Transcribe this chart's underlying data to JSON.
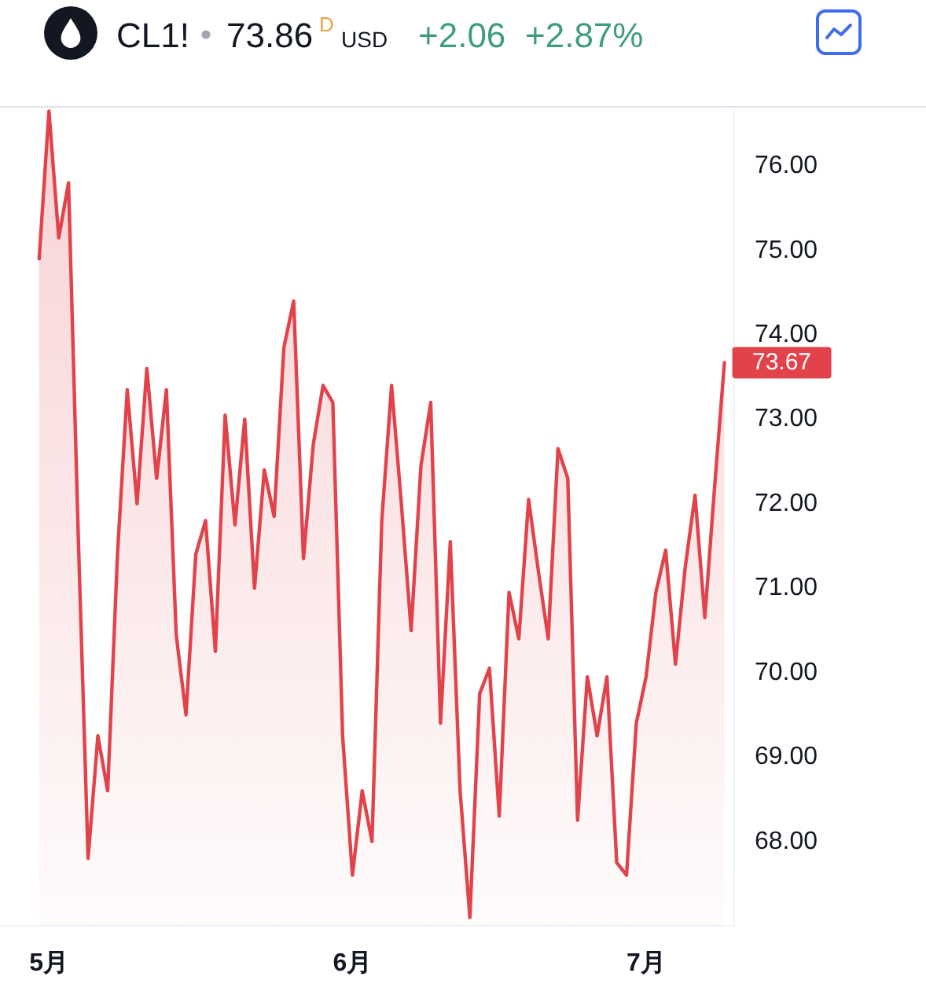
{
  "chart_data": {
    "type": "area",
    "title": "CL1!",
    "annotations": [
      "73.86",
      "D",
      "USD",
      "+2.06",
      "+2.87%",
      {
        "text": "73.67",
        "x": "--07-09",
        "y": 73.67
      }
    ],
    "x": [
      "--04-30",
      "--05-01",
      "--05-02",
      "--05-03",
      "--05-04",
      "--05-05",
      "--05-06",
      "--05-07",
      "--05-08",
      "--05-09",
      "--05-10",
      "--05-11",
      "--05-12",
      "--05-13",
      "--05-14",
      "--05-15",
      "--05-16",
      "--05-17",
      "--05-18",
      "--05-19",
      "--05-20",
      "--05-21",
      "--05-22",
      "--05-23",
      "--05-24",
      "--05-25",
      "--05-26",
      "--05-27",
      "--05-28",
      "--05-29",
      "--05-30",
      "--05-31",
      "--06-01",
      "--06-02",
      "--06-03",
      "--06-04",
      "--06-05",
      "--06-06",
      "--06-07",
      "--06-08",
      "--06-09",
      "--06-10",
      "--06-11",
      "--06-12",
      "--06-13",
      "--06-14",
      "--06-15",
      "--06-16",
      "--06-17",
      "--06-18",
      "--06-19",
      "--06-20",
      "--06-21",
      "--06-22",
      "--06-23",
      "--06-24",
      "--06-25",
      "--06-26",
      "--06-27",
      "--06-28",
      "--06-29",
      "--06-30",
      "--07-01",
      "--07-02",
      "--07-03",
      "--07-04",
      "--07-05",
      "--07-06",
      "--07-07",
      "--07-08",
      "--07-09"
    ],
    "values": [
      74.9,
      76.65,
      75.15,
      75.8,
      71.6,
      67.8,
      69.25,
      68.6,
      71.4,
      73.35,
      72.0,
      73.6,
      72.3,
      73.35,
      70.45,
      69.5,
      71.4,
      71.8,
      70.25,
      73.05,
      71.75,
      73.0,
      71.0,
      72.4,
      71.85,
      73.85,
      74.4,
      71.35,
      72.7,
      73.4,
      73.2,
      69.25,
      67.6,
      68.6,
      68.0,
      71.8,
      73.4,
      72.0,
      70.5,
      72.45,
      73.2,
      69.4,
      71.55,
      68.6,
      67.1,
      69.75,
      70.05,
      68.3,
      70.95,
      70.4,
      72.05,
      71.2,
      70.4,
      72.65,
      72.3,
      68.25,
      69.95,
      69.25,
      69.95,
      67.75,
      67.6,
      69.4,
      69.95,
      70.95,
      71.45,
      70.1,
      71.25,
      72.1,
      70.65,
      72.2,
      73.67
    ],
    "color": "#e2434b",
    "xlim": [
      "--04-26",
      "--07-10"
    ],
    "xticks": [
      {
        "value": "--05-01",
        "label": "5月"
      },
      {
        "value": "--06-01",
        "label": "6月"
      },
      {
        "value": "--07-01",
        "label": "7月"
      }
    ],
    "ylim": [
      67.0,
      76.7
    ],
    "yticks": [
      {
        "value": 68,
        "label": "68.00"
      },
      {
        "value": 69,
        "label": "69.00"
      },
      {
        "value": 70,
        "label": "70.00"
      },
      {
        "value": 71,
        "label": "71.00"
      },
      {
        "value": 72,
        "label": "72.00"
      },
      {
        "value": 73,
        "label": "73.00"
      },
      {
        "value": 74,
        "label": "74.00"
      },
      {
        "value": 75,
        "label": "75.00"
      },
      {
        "value": 76,
        "label": "76.00"
      }
    ]
  }
}
